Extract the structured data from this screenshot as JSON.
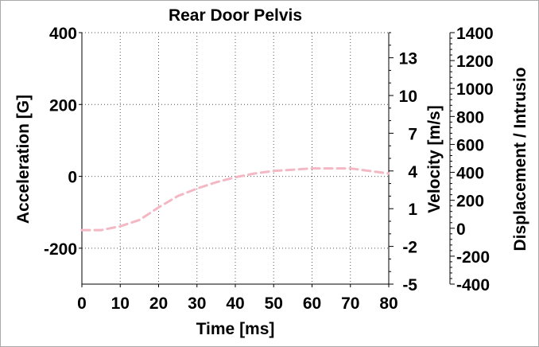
{
  "chart_data": {
    "type": "line",
    "title": "Rear Door Pelvis",
    "xlabel": "Time [ms]",
    "ylabel_left": "Acceleration [G]",
    "ylabel_right1": "Velocity [m/s]",
    "ylabel_right2": "Displacement / Intrusio",
    "xlim": [
      0,
      80
    ],
    "ylim_left": [
      -300,
      400
    ],
    "ylim_right1": [
      -5,
      15
    ],
    "ylim_right2": [
      -400,
      1400
    ],
    "x_ticks": [
      "0",
      "10",
      "20",
      "30",
      "40",
      "50",
      "60",
      "70",
      "80"
    ],
    "y_left_ticks": [
      "400",
      "200",
      "0",
      "-200"
    ],
    "y_right1_ticks": [
      "13",
      "10",
      "7",
      "4",
      "1",
      "-2",
      "-5"
    ],
    "y_right2_ticks": [
      "1400",
      "1200",
      "1000",
      "800",
      "600",
      "400",
      "200",
      "0",
      "-200",
      "-400"
    ],
    "grid": true,
    "series": [
      {
        "color": "#f4b8c4",
        "style": "dashed",
        "axis": "velocity",
        "x": [
          0,
          5,
          10,
          15,
          20,
          25,
          30,
          35,
          40,
          45,
          50,
          55,
          60,
          65,
          70,
          75,
          80
        ],
        "y": [
          -0.7,
          -0.7,
          -0.4,
          0.1,
          1.1,
          2.0,
          2.6,
          3.1,
          3.5,
          3.8,
          4.0,
          4.1,
          4.2,
          4.2,
          4.2,
          4.0,
          3.8
        ]
      }
    ]
  }
}
